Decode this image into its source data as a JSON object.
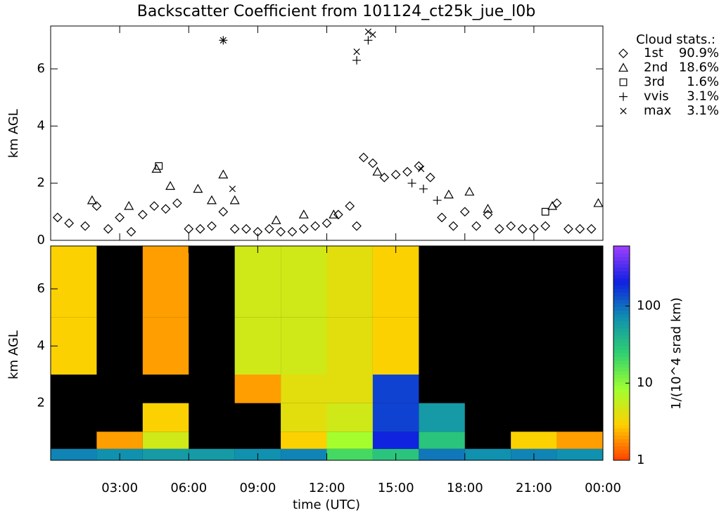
{
  "chart_data": [
    {
      "type": "scatter",
      "title": "Backscatter Coefficient from 101124_ct25k_jue_l0b",
      "ylabel": "km AGL",
      "xlim": [
        0,
        24
      ],
      "ylim": [
        0,
        7.5
      ],
      "yticks": [
        0,
        2,
        4,
        6
      ],
      "xticks": [
        3,
        6,
        9,
        12,
        15,
        18,
        21,
        24
      ],
      "legend_title": "Cloud stats.:",
      "series": [
        {
          "name": "1st",
          "stat": "90.9%",
          "marker": "diamond",
          "color": "#000000",
          "x": [
            0.3,
            0.8,
            1.5,
            2.0,
            2.5,
            3.0,
            3.5,
            4.0,
            4.5,
            5.0,
            5.5,
            6.0,
            6.5,
            7.0,
            7.5,
            8.0,
            8.5,
            9.0,
            9.5,
            10.0,
            10.5,
            11.0,
            11.5,
            12.0,
            12.5,
            13.0,
            13.3,
            13.6,
            14.0,
            14.5,
            15.0,
            15.5,
            16.0,
            16.5,
            17.0,
            17.5,
            18.0,
            18.5,
            19.0,
            19.5,
            20.0,
            20.5,
            21.0,
            21.5,
            22.0,
            22.5,
            23.0,
            23.5
          ],
          "values": [
            0.8,
            0.6,
            0.5,
            1.2,
            0.4,
            0.8,
            0.3,
            0.9,
            1.2,
            1.1,
            1.3,
            0.4,
            0.4,
            0.5,
            1.0,
            0.4,
            0.4,
            0.3,
            0.4,
            0.3,
            0.3,
            0.4,
            0.5,
            0.6,
            0.9,
            1.2,
            0.5,
            2.9,
            2.7,
            2.2,
            2.3,
            2.4,
            2.6,
            2.2,
            0.8,
            0.5,
            1.0,
            0.5,
            0.9,
            0.4,
            0.5,
            0.4,
            0.4,
            0.5,
            1.3,
            0.4,
            0.4,
            0.4
          ]
        },
        {
          "name": "2nd",
          "stat": "18.6%",
          "marker": "triangle",
          "color": "#000000",
          "x": [
            1.8,
            3.4,
            4.6,
            5.2,
            6.4,
            7.0,
            7.5,
            8.0,
            9.8,
            11.0,
            12.3,
            14.2,
            17.3,
            18.2,
            19.0,
            21.8,
            23.8
          ],
          "values": [
            1.4,
            1.2,
            2.5,
            1.9,
            1.8,
            1.4,
            2.3,
            1.4,
            0.7,
            0.9,
            0.9,
            2.4,
            1.6,
            1.7,
            1.1,
            1.2,
            1.3
          ]
        },
        {
          "name": "3rd",
          "stat": "1.6%",
          "marker": "square",
          "color": "#000000",
          "x": [
            4.7,
            21.5
          ],
          "values": [
            2.6,
            1.0
          ]
        },
        {
          "name": "vvis",
          "stat": "3.1%",
          "marker": "plus",
          "color": "#000000",
          "x": [
            7.5,
            13.3,
            13.8,
            15.7,
            16.2,
            16.8
          ],
          "values": [
            7.0,
            6.3,
            7.0,
            2.0,
            1.8,
            1.4
          ]
        },
        {
          "name": "max",
          "stat": "3.1%",
          "marker": "cross",
          "color": "#000000",
          "x": [
            7.5,
            7.9,
            13.3,
            13.8,
            14.0,
            16.1
          ],
          "values": [
            7.0,
            1.8,
            6.6,
            7.3,
            7.2,
            2.5
          ]
        }
      ]
    },
    {
      "type": "heatmap",
      "ylabel": "km AGL",
      "xlabel": "time (UTC)",
      "xlim": [
        0,
        24
      ],
      "ylim": [
        0,
        7.5
      ],
      "yticks": [
        2,
        4,
        6
      ],
      "xticks": [
        {
          "value": 3,
          "label": "03:00"
        },
        {
          "value": 6,
          "label": "06:00"
        },
        {
          "value": 9,
          "label": "09:00"
        },
        {
          "value": 12,
          "label": "12:00"
        },
        {
          "value": 15,
          "label": "15:00"
        },
        {
          "value": 18,
          "label": "18:00"
        },
        {
          "value": 21,
          "label": "21:00"
        },
        {
          "value": 24,
          "label": "00:00"
        }
      ],
      "x_edges": [
        0,
        2,
        4,
        6,
        8,
        10,
        12,
        14,
        16,
        18,
        20,
        22,
        24
      ],
      "y_edges": [
        0,
        0.4,
        1,
        2,
        3,
        5,
        7.5
      ],
      "z": [
        [
          80,
          70,
          60,
          60,
          70,
          80,
          20,
          30,
          90,
          70,
          80,
          70
        ],
        [
          null,
          2,
          5,
          null,
          null,
          3,
          8,
          200,
          30,
          null,
          3,
          2
        ],
        [
          null,
          null,
          3,
          null,
          null,
          4,
          5,
          150,
          60,
          null,
          null,
          null
        ],
        [
          null,
          null,
          null,
          null,
          2,
          4,
          4,
          150,
          null,
          null,
          null,
          null
        ],
        [
          3,
          null,
          2,
          null,
          5,
          5,
          4,
          3,
          null,
          null,
          null,
          null
        ],
        [
          3,
          null,
          2,
          null,
          5,
          5,
          4,
          3,
          null,
          null,
          null,
          null
        ]
      ],
      "background": "#000000",
      "colorbar_label": "1/(10^4 srad km)",
      "clim": [
        1,
        600
      ],
      "log_scale": true,
      "cticks": [
        1,
        10,
        100
      ],
      "colormap": [
        "#ff4000",
        "#ffd000",
        "#a0ff30",
        "#30d070",
        "#1090b0",
        "#1020e0",
        "#a040ff"
      ]
    }
  ]
}
